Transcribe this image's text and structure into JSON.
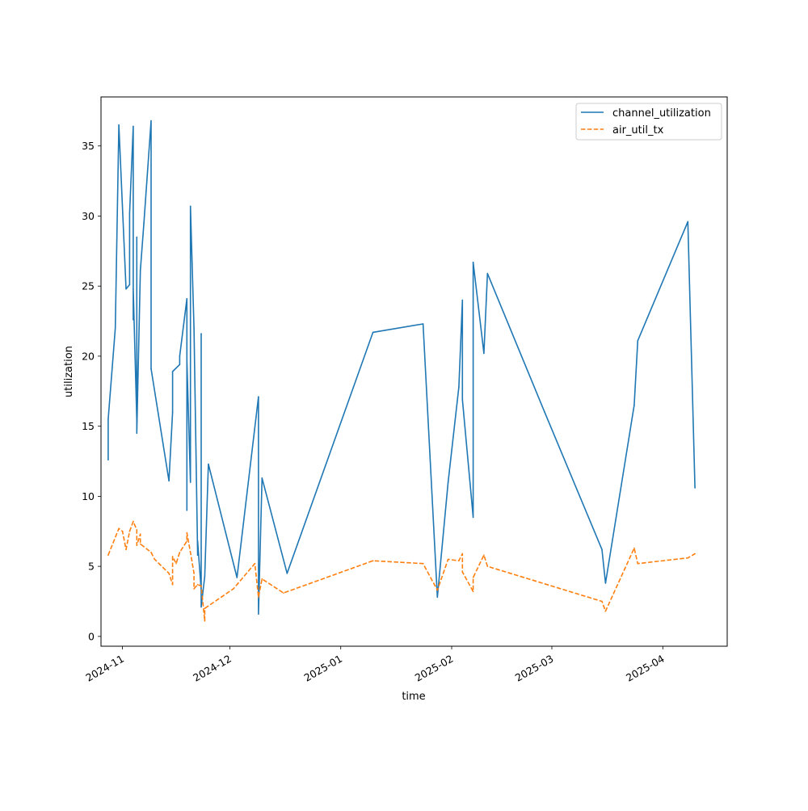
{
  "chart_data": {
    "type": "line",
    "title": "",
    "xlabel": "time",
    "ylabel": "utilization",
    "xlim": [
      "2024-10-26",
      "2025-04-19"
    ],
    "ylim": [
      -0.7,
      38.5
    ],
    "x_ticks": [
      {
        "date": "2024-11-01",
        "label": "2024-11"
      },
      {
        "date": "2024-12-01",
        "label": "2024-12"
      },
      {
        "date": "2025-01-01",
        "label": "2025-01"
      },
      {
        "date": "2025-02-01",
        "label": "2025-02"
      },
      {
        "date": "2025-03-01",
        "label": "2025-03"
      },
      {
        "date": "2025-04-01",
        "label": "2025-04"
      }
    ],
    "y_ticks": [
      0,
      5,
      10,
      15,
      20,
      25,
      30,
      35
    ],
    "grid": false,
    "legend_position": "top-right",
    "series": [
      {
        "name": "channel_utilization",
        "color": "#1f77b4",
        "dash": "solid",
        "points": [
          [
            "2024-10-28",
            12.6
          ],
          [
            "2024-10-28",
            15.5
          ],
          [
            "2024-10-30",
            22.0
          ],
          [
            "2024-10-31",
            36.5
          ],
          [
            "2024-11-02",
            24.8
          ],
          [
            "2024-11-03",
            25.1
          ],
          [
            "2024-11-03",
            30.2
          ],
          [
            "2024-11-04",
            36.4
          ],
          [
            "2024-11-04",
            22.6
          ],
          [
            "2024-11-04",
            24.8
          ],
          [
            "2024-11-05",
            15.4
          ],
          [
            "2024-11-05",
            28.5
          ],
          [
            "2024-11-05",
            14.5
          ],
          [
            "2024-11-06",
            26.1
          ],
          [
            "2024-11-07",
            29.5
          ],
          [
            "2024-11-09",
            36.8
          ],
          [
            "2024-11-09",
            19.1
          ],
          [
            "2024-11-14",
            11.1
          ],
          [
            "2024-11-15",
            16.0
          ],
          [
            "2024-11-15",
            18.9
          ],
          [
            "2024-11-17",
            19.4
          ],
          [
            "2024-11-17",
            20.0
          ],
          [
            "2024-11-19",
            24.1
          ],
          [
            "2024-11-19",
            9.0
          ],
          [
            "2024-11-19",
            19.7
          ],
          [
            "2024-11-20",
            11.0
          ],
          [
            "2024-11-20",
            19.4
          ],
          [
            "2024-11-20",
            30.7
          ],
          [
            "2024-11-21",
            22.0
          ],
          [
            "2024-11-22",
            5.8
          ],
          [
            "2024-11-22",
            6.8
          ],
          [
            "2024-11-23",
            3.3
          ],
          [
            "2024-11-23",
            21.6
          ],
          [
            "2024-11-23",
            2.1
          ],
          [
            "2024-11-24",
            4.3
          ],
          [
            "2024-11-25",
            12.3
          ],
          [
            "2024-12-03",
            4.2
          ],
          [
            "2024-12-09",
            17.1
          ],
          [
            "2024-12-09",
            1.6
          ],
          [
            "2024-12-10",
            11.3
          ],
          [
            "2024-12-17",
            4.5
          ],
          [
            "2025-01-10",
            21.7
          ],
          [
            "2025-01-24",
            22.3
          ],
          [
            "2025-01-28",
            2.8
          ],
          [
            "2025-01-31",
            11.0
          ],
          [
            "2025-02-03",
            17.8
          ],
          [
            "2025-02-04",
            24.0
          ],
          [
            "2025-02-04",
            16.9
          ],
          [
            "2025-02-07",
            8.5
          ],
          [
            "2025-02-07",
            26.7
          ],
          [
            "2025-02-10",
            20.2
          ],
          [
            "2025-02-11",
            25.9
          ],
          [
            "2025-02-27",
            16.0
          ],
          [
            "2025-03-15",
            6.2
          ],
          [
            "2025-03-16",
            3.8
          ],
          [
            "2025-03-24",
            16.5
          ],
          [
            "2025-03-25",
            21.1
          ],
          [
            "2025-04-08",
            29.6
          ],
          [
            "2025-04-10",
            10.6
          ]
        ]
      },
      {
        "name": "air_util_tx",
        "color": "#ff7f0e",
        "dash": "dashed",
        "points": [
          [
            "2024-10-28",
            5.8
          ],
          [
            "2024-10-31",
            7.7
          ],
          [
            "2024-11-01",
            7.5
          ],
          [
            "2024-11-02",
            6.2
          ],
          [
            "2024-11-03",
            7.5
          ],
          [
            "2024-11-04",
            8.2
          ],
          [
            "2024-11-05",
            7.6
          ],
          [
            "2024-11-05",
            6.5
          ],
          [
            "2024-11-06",
            7.3
          ],
          [
            "2024-11-06",
            6.6
          ],
          [
            "2024-11-09",
            6.0
          ],
          [
            "2024-11-10",
            5.5
          ],
          [
            "2024-11-14",
            4.5
          ],
          [
            "2024-11-15",
            3.7
          ],
          [
            "2024-11-15",
            5.7
          ],
          [
            "2024-11-16",
            5.2
          ],
          [
            "2024-11-17",
            6.0
          ],
          [
            "2024-11-19",
            6.8
          ],
          [
            "2024-11-19",
            7.4
          ],
          [
            "2024-11-20",
            6.0
          ],
          [
            "2024-11-21",
            4.5
          ],
          [
            "2024-11-21",
            3.4
          ],
          [
            "2024-11-22",
            3.7
          ],
          [
            "2024-11-23",
            3.6
          ],
          [
            "2024-11-24",
            1.1
          ],
          [
            "2024-11-24",
            2.0
          ],
          [
            "2024-12-02",
            3.4
          ],
          [
            "2024-12-08",
            5.2
          ],
          [
            "2024-12-09",
            2.8
          ],
          [
            "2024-12-10",
            4.1
          ],
          [
            "2024-12-16",
            3.1
          ],
          [
            "2025-01-10",
            5.4
          ],
          [
            "2025-01-24",
            5.2
          ],
          [
            "2025-01-28",
            3.3
          ],
          [
            "2025-01-31",
            5.5
          ],
          [
            "2025-02-03",
            5.4
          ],
          [
            "2025-02-04",
            5.9
          ],
          [
            "2025-02-04",
            4.6
          ],
          [
            "2025-02-07",
            3.2
          ],
          [
            "2025-02-07",
            4.2
          ],
          [
            "2025-02-10",
            5.8
          ],
          [
            "2025-02-11",
            5.0
          ],
          [
            "2025-03-15",
            2.5
          ],
          [
            "2025-03-16",
            1.8
          ],
          [
            "2025-03-24",
            6.3
          ],
          [
            "2025-03-25",
            5.2
          ],
          [
            "2025-04-08",
            5.6
          ],
          [
            "2025-04-10",
            5.9
          ]
        ]
      }
    ]
  }
}
